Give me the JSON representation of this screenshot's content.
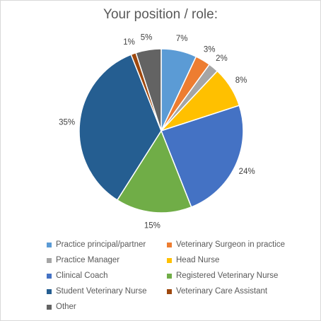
{
  "chart_data": {
    "type": "pie",
    "title": "Your position / role:",
    "categories": [
      "Practice principal/partner",
      "Veterinary Surgeon in practice",
      "Practice Manager",
      "Head Nurse",
      "Clinical Coach",
      "Registered Veterinary Nurse",
      "Student Veterinary Nurse",
      "Veterinary Care Assistant",
      "Other"
    ],
    "values": [
      7,
      3,
      2,
      8,
      24,
      15,
      35,
      1,
      5
    ],
    "labels": [
      "7%",
      "3%",
      "2%",
      "8%",
      "24%",
      "15%",
      "35%",
      "1%",
      "5%"
    ],
    "colors": [
      "#5b9bd5",
      "#ed7d31",
      "#a5a5a5",
      "#ffc000",
      "#4472c4",
      "#70ad47",
      "#255e91",
      "#9e480e",
      "#636363"
    ],
    "legend_position": "bottom"
  }
}
